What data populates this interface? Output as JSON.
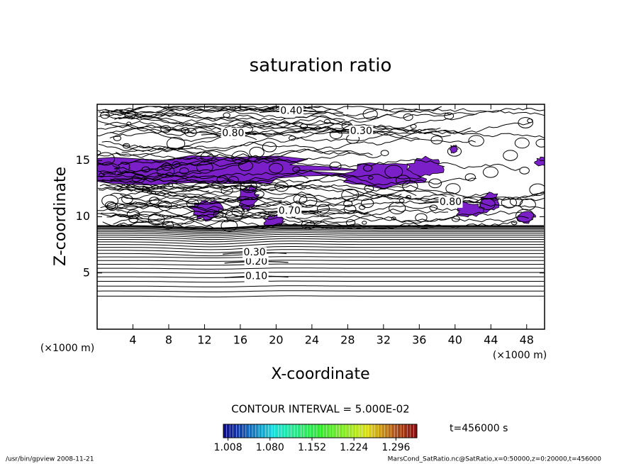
{
  "chart_data": {
    "type": "contour",
    "title": "saturation ratio",
    "x_label": "X-coordinate",
    "y_label": "Z-coordinate",
    "x_unit_label": "(×1000 m)",
    "y_unit_label": "(×1000 m)",
    "xlim": [
      0,
      50
    ],
    "ylim": [
      0,
      20
    ],
    "xticks": [
      4,
      8,
      12,
      16,
      20,
      24,
      28,
      32,
      36,
      40,
      44,
      48
    ],
    "yticks": [
      5,
      10,
      15
    ],
    "line_color": "#000000",
    "fill_color": "#7b1fc8",
    "contour_interval_label": "CONTOUR INTERVAL = 5.000E-02",
    "contours": [
      {
        "level": 0.1,
        "label": "0.10",
        "x": 17.8,
        "z": 4.7
      },
      {
        "level": 0.2,
        "label": "0.20",
        "x": 17.8,
        "z": 6.0
      },
      {
        "level": 0.3,
        "label": "0.30",
        "x": 17.6,
        "z": 6.8
      },
      {
        "level": 0.4,
        "label": "0.40",
        "x": 21.7,
        "z": 19.4
      },
      {
        "level": 0.3,
        "label": "0.30",
        "x": 29.5,
        "z": 17.6
      },
      {
        "level": 0.8,
        "label": "0.80",
        "x": 15.2,
        "z": 17.4
      },
      {
        "level": 0.7,
        "label": "0.70",
        "x": 21.5,
        "z": 10.5
      },
      {
        "level": 0.8,
        "label": "0.80",
        "x": 39.5,
        "z": 11.3
      }
    ],
    "colorbar": {
      "lim": [
        1.0,
        1.332
      ],
      "ticks": [
        1.008,
        {
          "value": 1.08,
          "label": "1.080"
        },
        1.152,
        1.224,
        1.296
      ]
    },
    "time_label": "t=456000 s",
    "footer_left": "/usr/bin/gpview  2008-11-21",
    "footer_right": "MarsCond_SatRatio.nc@SatRatio,x=0:50000,z=0:20000,t=456000"
  }
}
